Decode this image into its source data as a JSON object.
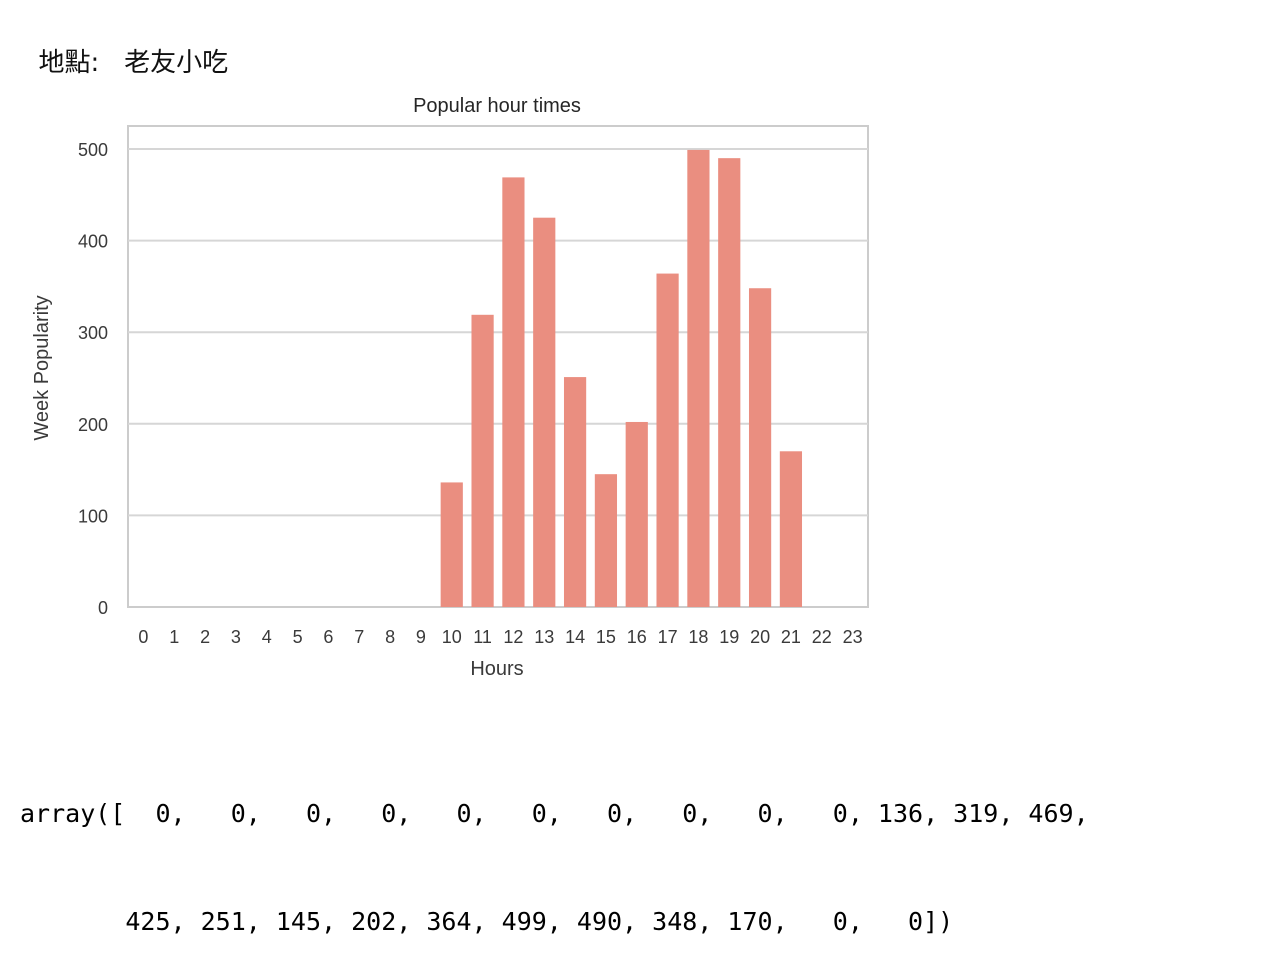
{
  "header": {
    "location_label": "地點:",
    "location_value": "老友小吃"
  },
  "chart_data": {
    "type": "bar",
    "title": "Popular hour times",
    "xlabel": "Hours",
    "ylabel": "Week Popularity",
    "categories": [
      "0",
      "1",
      "2",
      "3",
      "4",
      "5",
      "6",
      "7",
      "8",
      "9",
      "10",
      "11",
      "12",
      "13",
      "14",
      "15",
      "16",
      "17",
      "18",
      "19",
      "20",
      "21",
      "22",
      "23"
    ],
    "values": [
      0,
      0,
      0,
      0,
      0,
      0,
      0,
      0,
      0,
      0,
      136,
      319,
      469,
      425,
      251,
      145,
      202,
      364,
      499,
      490,
      348,
      170,
      0,
      0
    ],
    "ylim": [
      0,
      525
    ],
    "yticks": [
      0,
      100,
      200,
      300,
      400,
      500
    ],
    "grid": true,
    "bar_color": "#ea8e80"
  },
  "output": {
    "line1": "array([  0,   0,   0,   0,   0,   0,   0,   0,   0,   0, 136, 319, 469,",
    "line2": "       425, 251, 145, 202, 364, 499, 490, 348, 170,   0,   0])"
  }
}
